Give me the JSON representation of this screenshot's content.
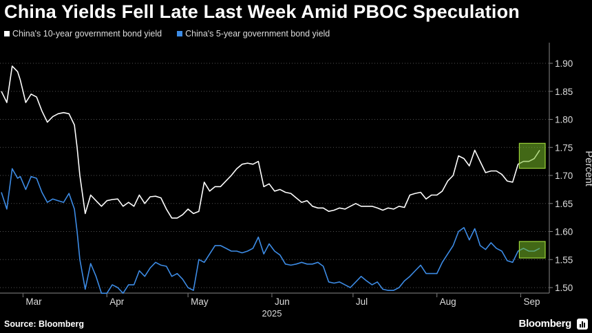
{
  "title": "China Yields Fell Late Last Week Amid PBOC Speculation",
  "source": "Source: Bloomberg",
  "brand": "Bloomberg",
  "brand_icon": "bloomberg-chart-icon",
  "chart_data": {
    "type": "line",
    "xlabel": "2025",
    "ylabel": "Percent",
    "ylim": [
      1.45,
      1.93
    ],
    "yticks": [
      1.5,
      1.55,
      1.6,
      1.65,
      1.7,
      1.75,
      1.8,
      1.85,
      1.9
    ],
    "ytick_labels": [
      "1.50",
      "1.55",
      "1.60",
      "1.65",
      "1.70",
      "1.75",
      "1.80",
      "1.85",
      "1.90"
    ],
    "x_range": [
      "2025-02-21",
      "2025-09-08"
    ],
    "month_labels": [
      {
        "label": "Mar",
        "date": "2025-03-01"
      },
      {
        "label": "Apr",
        "date": "2025-04-01"
      },
      {
        "label": "May",
        "date": "2025-05-01"
      },
      {
        "label": "Jun",
        "date": "2025-06-01"
      },
      {
        "label": "Jul",
        "date": "2025-07-01"
      },
      {
        "label": "Aug",
        "date": "2025-08-01"
      },
      {
        "label": "Sep",
        "date": "2025-09-01"
      }
    ],
    "grid": "horizontal-dotted",
    "legend_position": "top-left",
    "series": [
      {
        "name": "China's 10-year government  bond yield",
        "color": "#ffffff",
        "points": [
          [
            "2025-02-21",
            1.85
          ],
          [
            "2025-02-23",
            1.83
          ],
          [
            "2025-02-25",
            1.895
          ],
          [
            "2025-02-27",
            1.885
          ],
          [
            "2025-02-28",
            1.87
          ],
          [
            "2025-03-02",
            1.83
          ],
          [
            "2025-03-04",
            1.845
          ],
          [
            "2025-03-06",
            1.84
          ],
          [
            "2025-03-08",
            1.815
          ],
          [
            "2025-03-10",
            1.795
          ],
          [
            "2025-03-12",
            1.805
          ],
          [
            "2025-03-14",
            1.81
          ],
          [
            "2025-03-16",
            1.812
          ],
          [
            "2025-03-18",
            1.81
          ],
          [
            "2025-03-20",
            1.79
          ],
          [
            "2025-03-21",
            1.75
          ],
          [
            "2025-03-22",
            1.7
          ],
          [
            "2025-03-24",
            1.632
          ],
          [
            "2025-03-26",
            1.665
          ],
          [
            "2025-03-28",
            1.655
          ],
          [
            "2025-03-30",
            1.645
          ],
          [
            "2025-04-01",
            1.655
          ],
          [
            "2025-04-03",
            1.657
          ],
          [
            "2025-04-05",
            1.658
          ],
          [
            "2025-04-07",
            1.645
          ],
          [
            "2025-04-09",
            1.652
          ],
          [
            "2025-04-11",
            1.645
          ],
          [
            "2025-04-13",
            1.665
          ],
          [
            "2025-04-15",
            1.65
          ],
          [
            "2025-04-17",
            1.662
          ],
          [
            "2025-04-19",
            1.663
          ],
          [
            "2025-04-21",
            1.66
          ],
          [
            "2025-04-23",
            1.64
          ],
          [
            "2025-04-25",
            1.624
          ],
          [
            "2025-04-27",
            1.624
          ],
          [
            "2025-04-29",
            1.63
          ],
          [
            "2025-05-01",
            1.64
          ],
          [
            "2025-05-03",
            1.632
          ],
          [
            "2025-05-05",
            1.636
          ],
          [
            "2025-05-07",
            1.688
          ],
          [
            "2025-05-09",
            1.672
          ],
          [
            "2025-05-11",
            1.68
          ],
          [
            "2025-05-13",
            1.68
          ],
          [
            "2025-05-15",
            1.69
          ],
          [
            "2025-05-17",
            1.7
          ],
          [
            "2025-05-19",
            1.712
          ],
          [
            "2025-05-21",
            1.72
          ],
          [
            "2025-05-23",
            1.722
          ],
          [
            "2025-05-25",
            1.72
          ],
          [
            "2025-05-27",
            1.725
          ],
          [
            "2025-05-29",
            1.68
          ],
          [
            "2025-05-31",
            1.685
          ],
          [
            "2025-06-02",
            1.672
          ],
          [
            "2025-06-04",
            1.675
          ],
          [
            "2025-06-06",
            1.67
          ],
          [
            "2025-06-08",
            1.668
          ],
          [
            "2025-06-10",
            1.66
          ],
          [
            "2025-06-12",
            1.652
          ],
          [
            "2025-06-14",
            1.655
          ],
          [
            "2025-06-16",
            1.645
          ],
          [
            "2025-06-18",
            1.642
          ],
          [
            "2025-06-20",
            1.642
          ],
          [
            "2025-06-22",
            1.636
          ],
          [
            "2025-06-24",
            1.638
          ],
          [
            "2025-06-26",
            1.642
          ],
          [
            "2025-06-28",
            1.64
          ],
          [
            "2025-06-30",
            1.645
          ],
          [
            "2025-07-02",
            1.65
          ],
          [
            "2025-07-04",
            1.645
          ],
          [
            "2025-07-06",
            1.645
          ],
          [
            "2025-07-08",
            1.645
          ],
          [
            "2025-07-10",
            1.642
          ],
          [
            "2025-07-12",
            1.638
          ],
          [
            "2025-07-14",
            1.642
          ],
          [
            "2025-07-16",
            1.64
          ],
          [
            "2025-07-18",
            1.645
          ],
          [
            "2025-07-20",
            1.643
          ],
          [
            "2025-07-22",
            1.665
          ],
          [
            "2025-07-24",
            1.668
          ],
          [
            "2025-07-26",
            1.67
          ],
          [
            "2025-07-28",
            1.658
          ],
          [
            "2025-07-30",
            1.665
          ],
          [
            "2025-08-01",
            1.665
          ],
          [
            "2025-08-03",
            1.672
          ],
          [
            "2025-08-05",
            1.69
          ],
          [
            "2025-08-07",
            1.7
          ],
          [
            "2025-08-09",
            1.735
          ],
          [
            "2025-08-11",
            1.73
          ],
          [
            "2025-08-13",
            1.717
          ],
          [
            "2025-08-15",
            1.745
          ],
          [
            "2025-08-17",
            1.725
          ],
          [
            "2025-08-19",
            1.705
          ],
          [
            "2025-08-21",
            1.708
          ],
          [
            "2025-08-23",
            1.708
          ],
          [
            "2025-08-25",
            1.702
          ],
          [
            "2025-08-27",
            1.69
          ],
          [
            "2025-08-29",
            1.688
          ],
          [
            "2025-08-31",
            1.72
          ],
          [
            "2025-09-02",
            1.725
          ],
          [
            "2025-09-04",
            1.725
          ],
          [
            "2025-09-06",
            1.73
          ],
          [
            "2025-09-08",
            1.745
          ]
        ]
      },
      {
        "name": "China's 5-year government  bond yield",
        "color": "#3d8ce6",
        "points": [
          [
            "2025-02-21",
            1.67
          ],
          [
            "2025-02-23",
            1.64
          ],
          [
            "2025-02-25",
            1.712
          ],
          [
            "2025-02-27",
            1.695
          ],
          [
            "2025-02-28",
            1.698
          ],
          [
            "2025-03-02",
            1.675
          ],
          [
            "2025-03-04",
            1.698
          ],
          [
            "2025-03-06",
            1.695
          ],
          [
            "2025-03-08",
            1.67
          ],
          [
            "2025-03-10",
            1.652
          ],
          [
            "2025-03-12",
            1.658
          ],
          [
            "2025-03-14",
            1.655
          ],
          [
            "2025-03-16",
            1.652
          ],
          [
            "2025-03-18",
            1.668
          ],
          [
            "2025-03-20",
            1.64
          ],
          [
            "2025-03-21",
            1.6
          ],
          [
            "2025-03-22",
            1.55
          ],
          [
            "2025-03-24",
            1.497
          ],
          [
            "2025-03-26",
            1.543
          ],
          [
            "2025-03-28",
            1.52
          ],
          [
            "2025-03-30",
            1.49
          ],
          [
            "2025-04-01",
            1.49
          ],
          [
            "2025-04-03",
            1.505
          ],
          [
            "2025-04-05",
            1.5
          ],
          [
            "2025-04-07",
            1.49
          ],
          [
            "2025-04-09",
            1.505
          ],
          [
            "2025-04-11",
            1.505
          ],
          [
            "2025-04-13",
            1.53
          ],
          [
            "2025-04-15",
            1.52
          ],
          [
            "2025-04-17",
            1.535
          ],
          [
            "2025-04-19",
            1.545
          ],
          [
            "2025-04-21",
            1.54
          ],
          [
            "2025-04-23",
            1.538
          ],
          [
            "2025-04-25",
            1.52
          ],
          [
            "2025-04-27",
            1.525
          ],
          [
            "2025-04-29",
            1.515
          ],
          [
            "2025-05-01",
            1.5
          ],
          [
            "2025-05-03",
            1.495
          ],
          [
            "2025-05-05",
            1.55
          ],
          [
            "2025-05-07",
            1.545
          ],
          [
            "2025-05-09",
            1.56
          ],
          [
            "2025-05-11",
            1.575
          ],
          [
            "2025-05-13",
            1.575
          ],
          [
            "2025-05-15",
            1.57
          ],
          [
            "2025-05-17",
            1.565
          ],
          [
            "2025-05-19",
            1.565
          ],
          [
            "2025-05-21",
            1.562
          ],
          [
            "2025-05-23",
            1.565
          ],
          [
            "2025-05-25",
            1.57
          ],
          [
            "2025-05-27",
            1.59
          ],
          [
            "2025-05-29",
            1.56
          ],
          [
            "2025-05-31",
            1.578
          ],
          [
            "2025-06-02",
            1.565
          ],
          [
            "2025-06-04",
            1.558
          ],
          [
            "2025-06-06",
            1.542
          ],
          [
            "2025-06-08",
            1.54
          ],
          [
            "2025-06-10",
            1.542
          ],
          [
            "2025-06-12",
            1.545
          ],
          [
            "2025-06-14",
            1.542
          ],
          [
            "2025-06-16",
            1.542
          ],
          [
            "2025-06-18",
            1.545
          ],
          [
            "2025-06-20",
            1.538
          ],
          [
            "2025-06-22",
            1.51
          ],
          [
            "2025-06-24",
            1.508
          ],
          [
            "2025-06-26",
            1.51
          ],
          [
            "2025-06-28",
            1.505
          ],
          [
            "2025-06-30",
            1.5
          ],
          [
            "2025-07-02",
            1.51
          ],
          [
            "2025-07-04",
            1.52
          ],
          [
            "2025-07-06",
            1.512
          ],
          [
            "2025-07-08",
            1.505
          ],
          [
            "2025-07-10",
            1.51
          ],
          [
            "2025-07-12",
            1.497
          ],
          [
            "2025-07-14",
            1.495
          ],
          [
            "2025-07-16",
            1.495
          ],
          [
            "2025-07-18",
            1.5
          ],
          [
            "2025-07-20",
            1.512
          ],
          [
            "2025-07-22",
            1.52
          ],
          [
            "2025-07-24",
            1.53
          ],
          [
            "2025-07-26",
            1.54
          ],
          [
            "2025-07-28",
            1.525
          ],
          [
            "2025-07-30",
            1.525
          ],
          [
            "2025-08-01",
            1.525
          ],
          [
            "2025-08-03",
            1.545
          ],
          [
            "2025-08-05",
            1.56
          ],
          [
            "2025-08-07",
            1.575
          ],
          [
            "2025-08-09",
            1.6
          ],
          [
            "2025-08-11",
            1.607
          ],
          [
            "2025-08-13",
            1.585
          ],
          [
            "2025-08-15",
            1.605
          ],
          [
            "2025-08-17",
            1.575
          ],
          [
            "2025-08-19",
            1.568
          ],
          [
            "2025-08-21",
            1.58
          ],
          [
            "2025-08-23",
            1.57
          ],
          [
            "2025-08-25",
            1.565
          ],
          [
            "2025-08-27",
            1.548
          ],
          [
            "2025-08-29",
            1.545
          ],
          [
            "2025-08-31",
            1.565
          ],
          [
            "2025-09-02",
            1.57
          ],
          [
            "2025-09-04",
            1.565
          ],
          [
            "2025-09-06",
            1.565
          ],
          [
            "2025-09-08",
            1.57
          ]
        ]
      }
    ]
  }
}
